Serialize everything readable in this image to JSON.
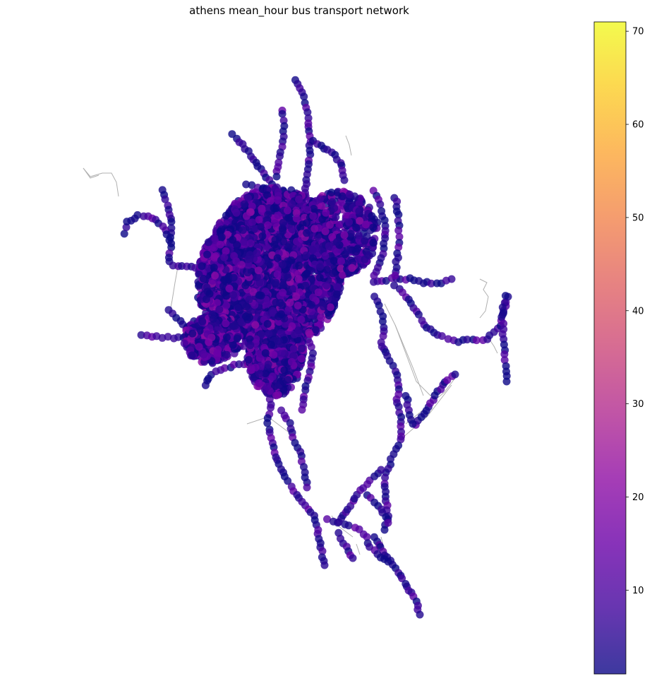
{
  "chart_data": {
    "type": "scatter",
    "title": "athens mean_hour bus transport network",
    "xlabel": "",
    "ylabel": "",
    "axes_visible": false,
    "grid": false,
    "legend": "none",
    "colormap": "plasma",
    "colorbar": {
      "vmin": 1,
      "vmax": 71,
      "ticks": [
        10,
        20,
        30,
        40,
        50,
        60,
        70
      ],
      "tick_labels": [
        "10",
        "20",
        "30",
        "40",
        "50",
        "60",
        "70"
      ],
      "position": "right"
    },
    "node_value_range": [
      1,
      25
    ],
    "edge_color": "#b0b0b0",
    "node_opacity": 0.8
  }
}
